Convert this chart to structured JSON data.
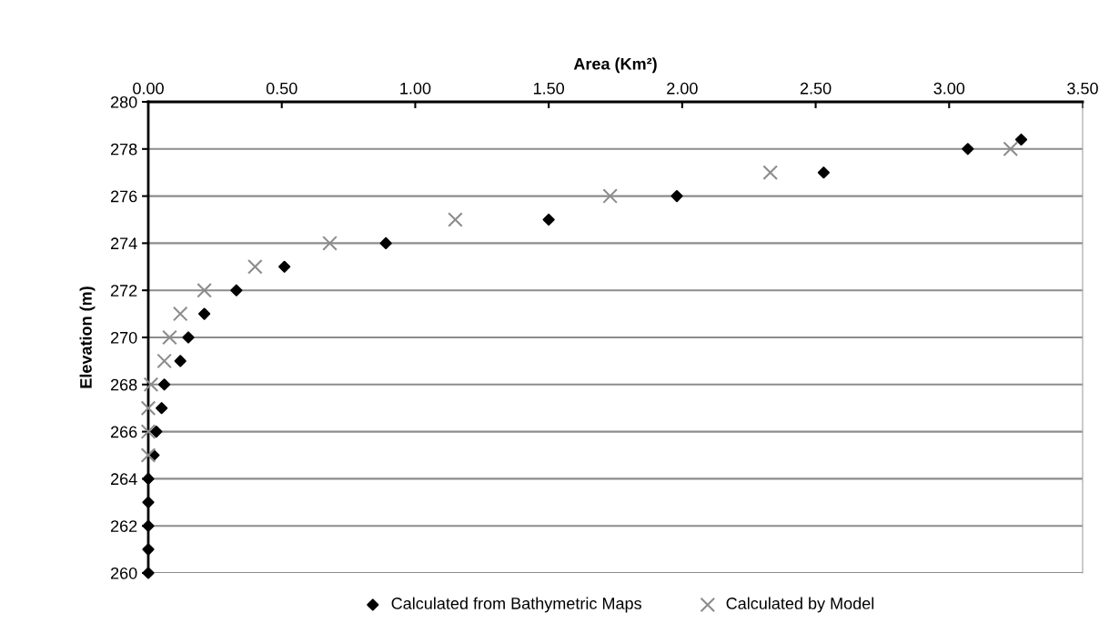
{
  "chart_data": {
    "type": "scatter",
    "xlabel": "Area (Km²)",
    "ylabel": "Elevation (m)",
    "xlim": [
      0,
      3.5
    ],
    "xticks": [
      {
        "value": 0,
        "label": "0.00"
      },
      {
        "value": 0.5,
        "label": "0.50"
      },
      {
        "value": 1,
        "label": "1.00"
      },
      {
        "value": 1.5,
        "label": "1.50"
      },
      {
        "value": 2,
        "label": "2.00"
      },
      {
        "value": 2.5,
        "label": "2.50"
      },
      {
        "value": 3,
        "label": "3.00"
      },
      {
        "value": 3.5,
        "label": "3.50"
      }
    ],
    "ylim": [
      260,
      280
    ],
    "yticks": [
      260,
      262,
      264,
      266,
      268,
      270,
      272,
      274,
      276,
      278,
      280
    ],
    "grid": "y",
    "legend": "bottom",
    "series": [
      {
        "name": "Calculated from Bathymetric Maps",
        "color": "#000000",
        "marker": "diamond",
        "x": [
          0,
          0,
          0,
          0,
          0,
          0.02,
          0.03,
          0.05,
          0.06,
          0.12,
          0.15,
          0.21,
          0.33,
          0.51,
          0.89,
          1.5,
          1.98,
          2.53,
          3.07,
          3.27
        ],
        "values": [
          260,
          261,
          262,
          263,
          264,
          265,
          266,
          267,
          268,
          269,
          270,
          271,
          272,
          273,
          274,
          275,
          276,
          277,
          278,
          278.4
        ]
      },
      {
        "name": "Calculated by Model",
        "color": "#8c8c8c",
        "marker": "cross",
        "x": [
          0,
          0,
          0,
          0.01,
          0.06,
          0.08,
          0.12,
          0.21,
          0.4,
          0.68,
          1.15,
          1.73,
          2.33,
          3.23
        ],
        "values": [
          265,
          266,
          267,
          268,
          269,
          270,
          271,
          272,
          273,
          274,
          275,
          276,
          277,
          278
        ]
      }
    ]
  }
}
